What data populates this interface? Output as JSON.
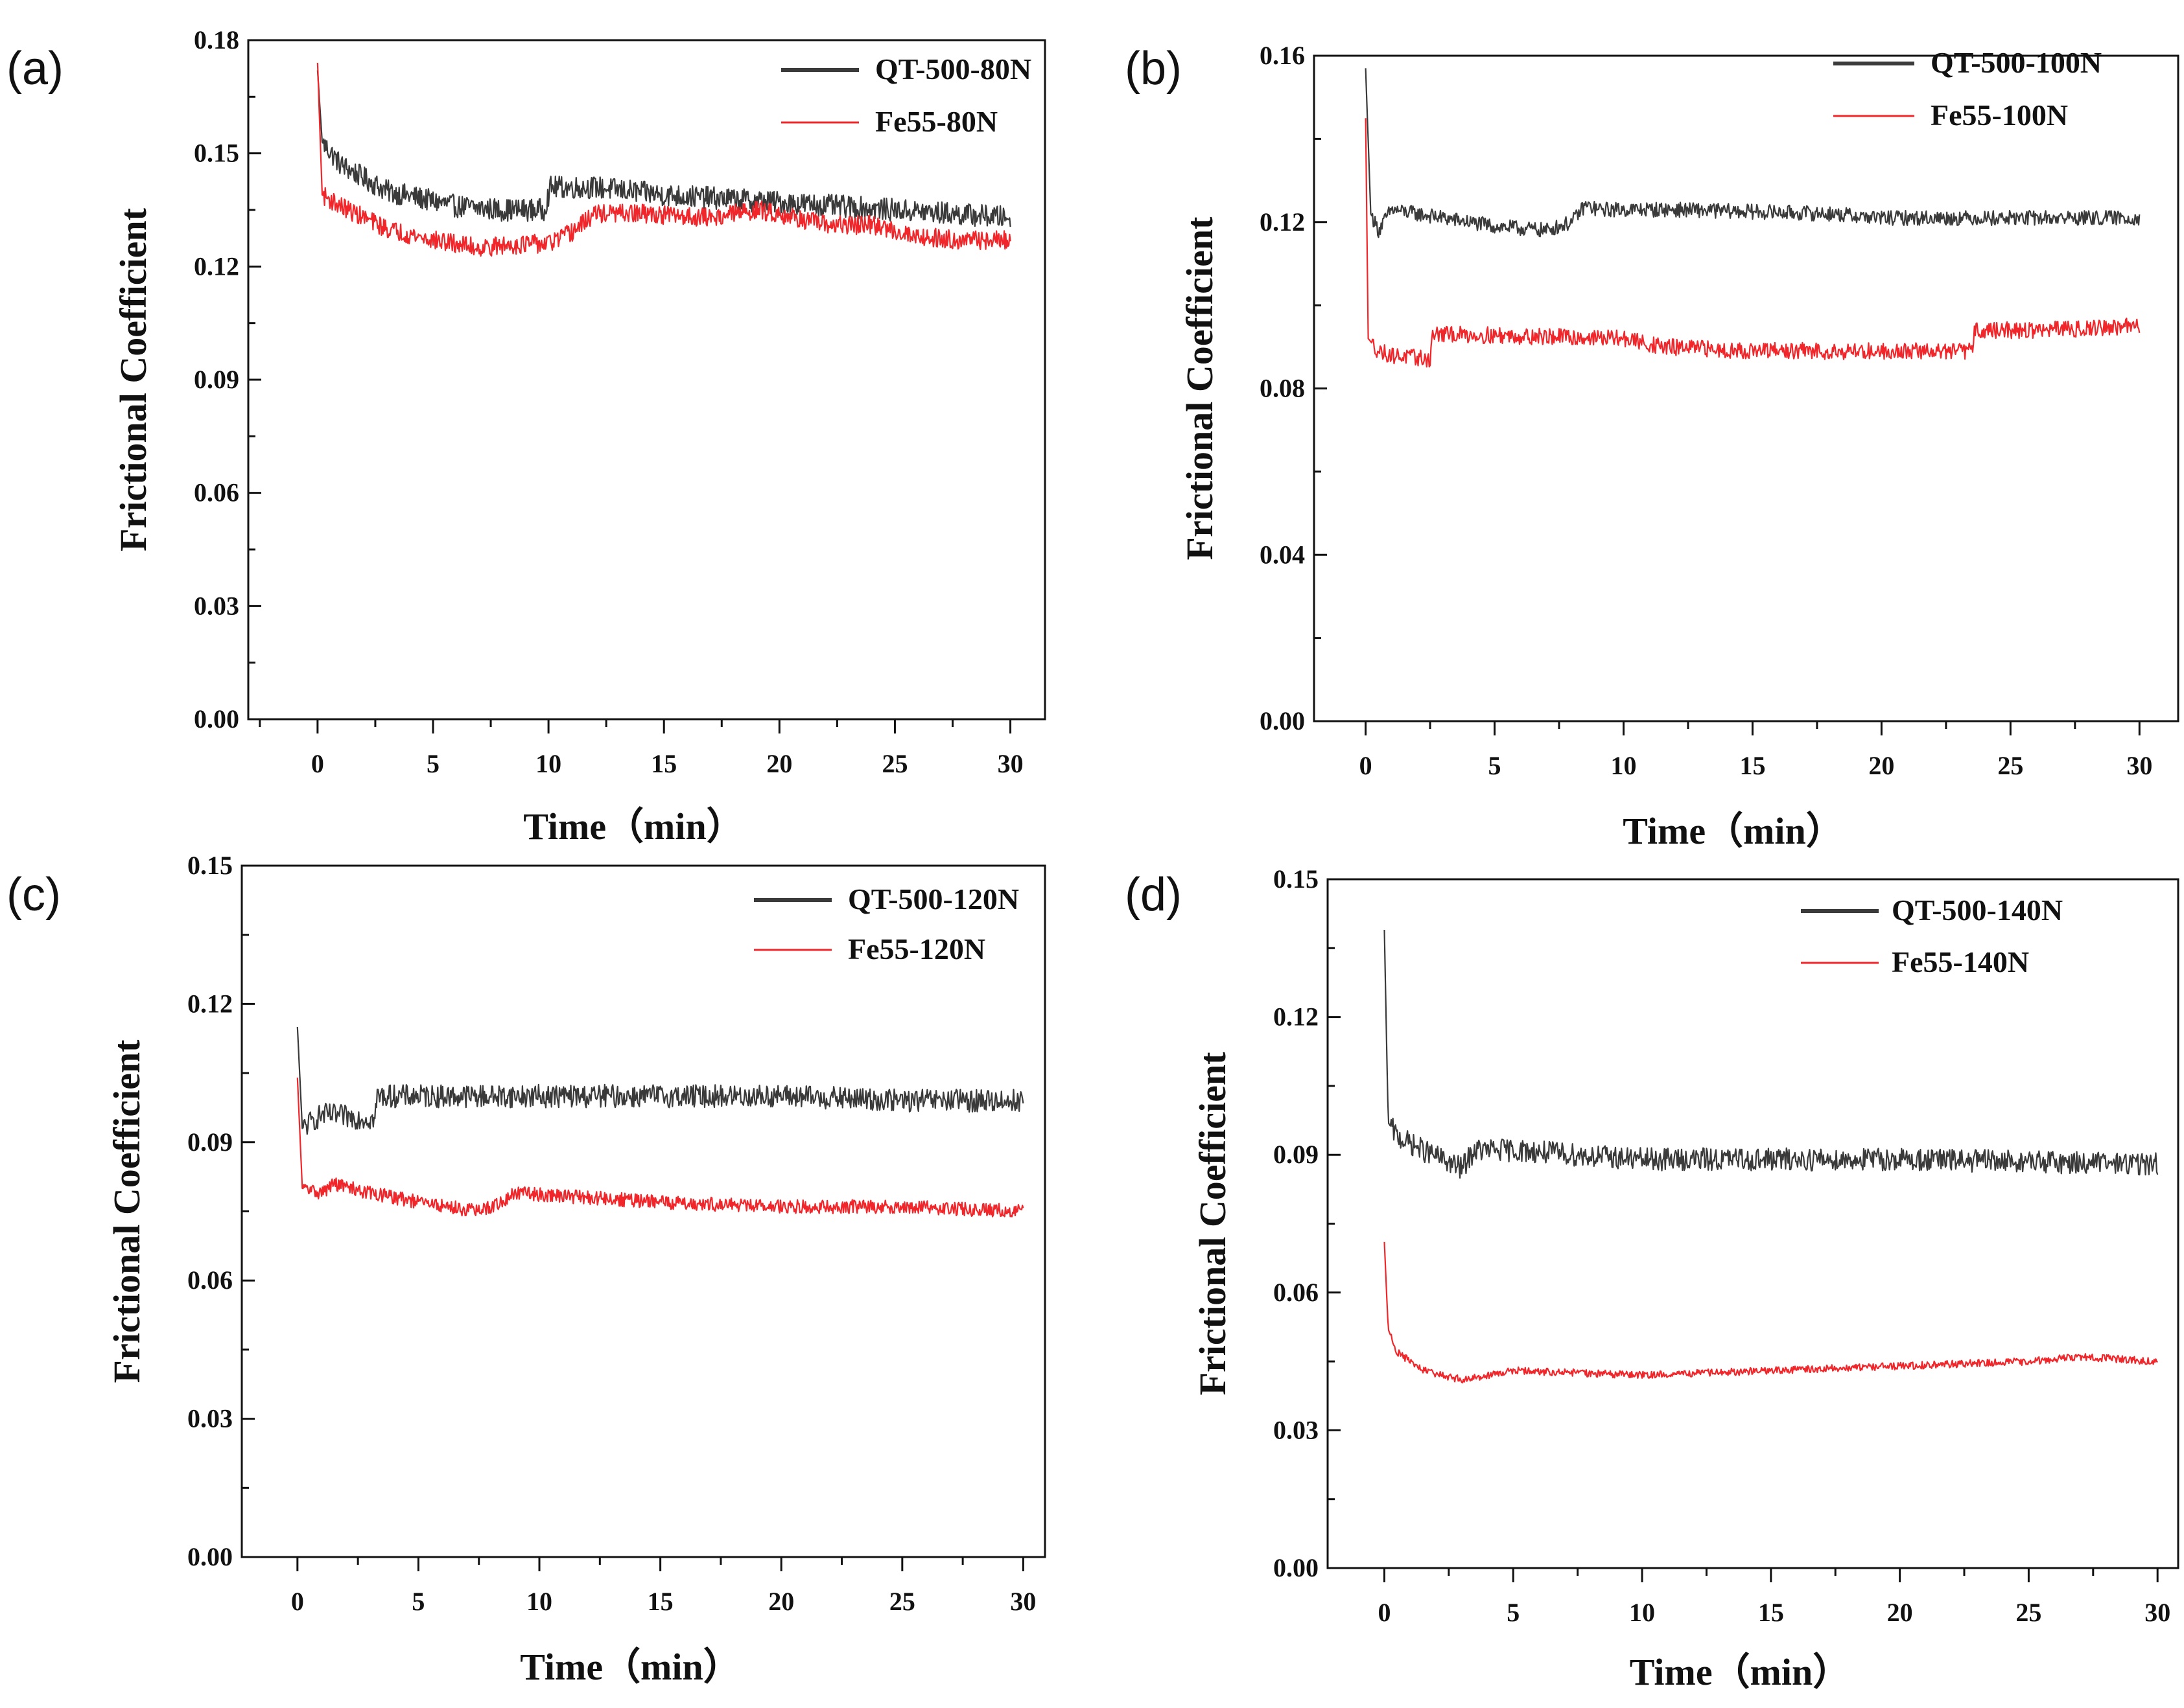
{
  "figure": {
    "colors": {
      "qt": "#3a3a3a",
      "fe": "#f0262a",
      "axis": "#111111"
    }
  },
  "chart_data": [
    {
      "type": "line",
      "panel": "(a)",
      "xlabel": "Time（min）",
      "ylabel": "Frictional Coefficient",
      "xlim": [
        -3,
        31.5
      ],
      "ylim": [
        0,
        0.18
      ],
      "xticks": [
        0,
        5,
        10,
        15,
        20,
        25,
        30
      ],
      "yticks": [
        0,
        0.03,
        0.06,
        0.09,
        0.12,
        0.15,
        0.18
      ],
      "ytick_labels": [
        "0.00",
        "0.03",
        "0.06",
        "0.09",
        "0.12",
        "0.15",
        "0.18"
      ],
      "legend_position": "top-right",
      "series": [
        {
          "name": "QT-500-80N",
          "color": "#3a3a3a",
          "noise": 0.003,
          "x": [
            0,
            0.2,
            1,
            3,
            6,
            8,
            9.8,
            10.1,
            12,
            15,
            20,
            25,
            30
          ],
          "y": [
            0.172,
            0.153,
            0.147,
            0.14,
            0.136,
            0.135,
            0.135,
            0.141,
            0.141,
            0.139,
            0.137,
            0.135,
            0.133
          ]
        },
        {
          "name": "Fe55-80N",
          "color": "#f0262a",
          "noise": 0.0025,
          "x": [
            0,
            0.2,
            1,
            3,
            5,
            7,
            9,
            10,
            11,
            12,
            14,
            17,
            19,
            20,
            22,
            24,
            26,
            28,
            30
          ],
          "y": [
            0.174,
            0.139,
            0.136,
            0.13,
            0.127,
            0.125,
            0.126,
            0.126,
            0.129,
            0.134,
            0.134,
            0.133,
            0.135,
            0.134,
            0.131,
            0.131,
            0.128,
            0.127,
            0.127
          ]
        }
      ]
    },
    {
      "type": "line",
      "panel": "(b)",
      "xlabel": "Time（min）",
      "ylabel": "Frictional Coefficient",
      "xlim": [
        -2,
        31.5
      ],
      "ylim": [
        0,
        0.16
      ],
      "xticks": [
        0,
        5,
        10,
        15,
        20,
        25,
        30
      ],
      "yticks": [
        0,
        0.04,
        0.08,
        0.12,
        0.16
      ],
      "ytick_labels": [
        "0.00",
        "0.04",
        "0.08",
        "0.12",
        "0.16"
      ],
      "legend_position": "top-right",
      "series": [
        {
          "name": "QT-500-100N",
          "color": "#3a3a3a",
          "noise": 0.0018,
          "x": [
            0,
            0.2,
            0.5,
            1,
            3,
            5,
            7,
            8,
            8.5,
            9,
            12,
            18,
            20,
            25,
            30
          ],
          "y": [
            0.157,
            0.122,
            0.118,
            0.123,
            0.121,
            0.119,
            0.118,
            0.12,
            0.124,
            0.123,
            0.123,
            0.122,
            0.121,
            0.121,
            0.121
          ]
        },
        {
          "name": "Fe55-100N",
          "color": "#f0262a",
          "noise": 0.002,
          "x": [
            0,
            0.1,
            0.5,
            1,
            2.5,
            2.6,
            3.5,
            10,
            11.5,
            15,
            20,
            23.5,
            23.6,
            26,
            30
          ],
          "y": [
            0.145,
            0.092,
            0.089,
            0.088,
            0.087,
            0.093,
            0.093,
            0.092,
            0.09,
            0.089,
            0.089,
            0.089,
            0.094,
            0.094,
            0.095
          ]
        }
      ]
    },
    {
      "type": "line",
      "panel": "(c)",
      "xlabel": "Time（min）",
      "ylabel": "Frictional Coefficient",
      "xlim": [
        -2.3,
        30.9
      ],
      "ylim": [
        0,
        0.15
      ],
      "xticks": [
        0,
        5,
        10,
        15,
        20,
        25,
        30
      ],
      "yticks": [
        0,
        0.03,
        0.06,
        0.09,
        0.12,
        0.15
      ],
      "ytick_labels": [
        "0.00",
        "0.03",
        "0.06",
        "0.09",
        "0.12",
        "0.15"
      ],
      "legend_position": "top-right",
      "series": [
        {
          "name": "QT-500-120N",
          "color": "#3a3a3a",
          "noise": 0.0025,
          "x": [
            0,
            0.2,
            1,
            3.2,
            3.3,
            4,
            10,
            15,
            20,
            25,
            30
          ],
          "y": [
            0.115,
            0.093,
            0.096,
            0.095,
            0.1,
            0.1,
            0.1,
            0.1,
            0.1,
            0.099,
            0.099
          ]
        },
        {
          "name": "Fe55-120N",
          "color": "#f0262a",
          "noise": 0.0015,
          "x": [
            0,
            0.2,
            1,
            1.5,
            3,
            5,
            7.5,
            8.5,
            9,
            12,
            15,
            20,
            25,
            30
          ],
          "y": [
            0.104,
            0.08,
            0.079,
            0.081,
            0.079,
            0.077,
            0.075,
            0.077,
            0.079,
            0.078,
            0.077,
            0.076,
            0.076,
            0.075
          ]
        }
      ]
    },
    {
      "type": "line",
      "panel": "(d)",
      "xlabel": "Time（min）",
      "ylabel": "Frictional Coefficient",
      "xlim": [
        -2.2,
        30.8
      ],
      "ylim": [
        0,
        0.15
      ],
      "xticks": [
        0,
        5,
        10,
        15,
        20,
        25,
        30
      ],
      "yticks": [
        0,
        0.03,
        0.06,
        0.09,
        0.12,
        0.15
      ],
      "ytick_labels": [
        "0.00",
        "0.03",
        "0.06",
        "0.09",
        "0.12",
        "0.15"
      ],
      "legend_position": "top-right",
      "series": [
        {
          "name": "QT-500-140N",
          "color": "#3a3a3a",
          "noise": 0.0025,
          "x": [
            0,
            0.15,
            0.5,
            1.5,
            3,
            3.5,
            5,
            10,
            20,
            30
          ],
          "y": [
            0.139,
            0.097,
            0.094,
            0.091,
            0.087,
            0.091,
            0.091,
            0.089,
            0.089,
            0.088
          ]
        },
        {
          "name": "Fe55-140N",
          "color": "#f0262a",
          "noise": 0.0008,
          "x": [
            0,
            0.15,
            0.5,
            1.5,
            3,
            5,
            10,
            15,
            20,
            25,
            27,
            30
          ],
          "y": [
            0.071,
            0.052,
            0.047,
            0.043,
            0.041,
            0.043,
            0.042,
            0.043,
            0.044,
            0.045,
            0.046,
            0.045
          ]
        }
      ]
    }
  ]
}
